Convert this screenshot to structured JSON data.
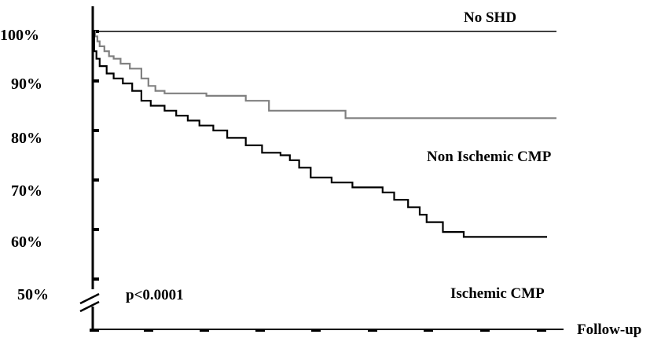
{
  "chart_data": {
    "type": "line",
    "step": true,
    "xlabel": "Follow-up",
    "ylabel": "",
    "ylim": [
      50,
      100
    ],
    "y_axis_break": true,
    "ytick_labels": [
      "100%",
      "90%",
      "80%",
      "70%",
      "60%",
      "50%"
    ],
    "ytick_values": [
      100,
      90,
      80,
      70,
      60,
      50
    ],
    "x_ticks": [
      0,
      1,
      2,
      3,
      4,
      5,
      6,
      7,
      8,
      9
    ],
    "xlim": [
      0,
      10
    ],
    "annotation": "p<0.0001",
    "grid": false,
    "series": [
      {
        "name": "No SHD",
        "color": "#000000",
        "x": [
          0,
          10
        ],
        "y": [
          100,
          100
        ]
      },
      {
        "name": "Non Ischemic CMP",
        "color": "#808080",
        "x": [
          0,
          0.05,
          0.1,
          0.15,
          0.25,
          0.35,
          0.45,
          0.6,
          0.8,
          1.05,
          1.2,
          1.35,
          1.55,
          2.45,
          3.3,
          3.8,
          5.45,
          10
        ],
        "y": [
          100,
          99,
          98,
          97,
          96,
          95,
          94.5,
          93.5,
          92.5,
          90.5,
          89,
          88,
          87.5,
          87,
          86,
          84,
          82.5,
          82.5
        ]
      },
      {
        "name": "Ischemic CMP",
        "color": "#000000",
        "x": [
          0,
          0.03,
          0.08,
          0.15,
          0.3,
          0.45,
          0.65,
          0.85,
          1.05,
          1.25,
          1.55,
          1.8,
          2.05,
          2.3,
          2.6,
          2.9,
          3.3,
          3.65,
          4.05,
          4.25,
          4.45,
          4.7,
          5.15,
          5.6,
          6.25,
          6.5,
          6.8,
          7.05,
          7.2,
          7.55,
          8,
          10
        ],
        "y": [
          100,
          96,
          94.5,
          93,
          91.5,
          90.5,
          89.5,
          88,
          86,
          85,
          84,
          83,
          82,
          81,
          80,
          78.5,
          77,
          75.5,
          75,
          74,
          72.5,
          70.5,
          69.5,
          68.5,
          67.5,
          66,
          64.5,
          63,
          61.5,
          59.5,
          58.5,
          58.5
        ]
      }
    ]
  }
}
